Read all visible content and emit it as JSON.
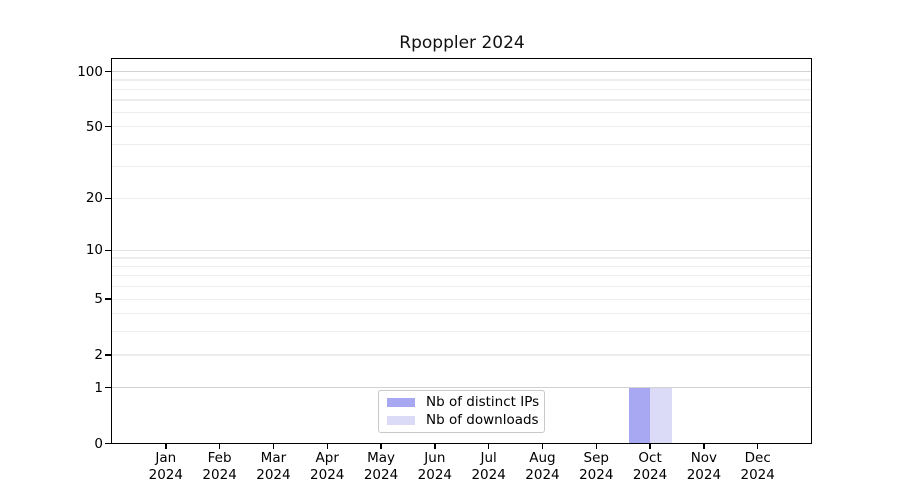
{
  "chart_data": {
    "type": "bar",
    "title": "Rpoppler 2024",
    "year": "2024",
    "categories": [
      "Jan 2024",
      "Feb 2024",
      "Mar 2024",
      "Apr 2024",
      "May 2024",
      "Jun 2024",
      "Jul 2024",
      "Aug 2024",
      "Sep 2024",
      "Oct 2024",
      "Nov 2024",
      "Dec 2024"
    ],
    "series": [
      {
        "name": "Nb of distinct IPs",
        "color": "#a7a7f2",
        "values": [
          0,
          0,
          0,
          0,
          0,
          0,
          0,
          0,
          0,
          1,
          0,
          0
        ]
      },
      {
        "name": "Nb of downloads",
        "color": "#dbdbf7",
        "values": [
          0,
          0,
          0,
          0,
          0,
          0,
          0,
          0,
          0,
          1,
          0,
          0
        ]
      }
    ],
    "y_ticks": [
      0,
      1,
      2,
      5,
      10,
      20,
      50,
      100
    ],
    "y_scale": "log1p",
    "ylim": [
      0,
      117
    ],
    "xlabel": "",
    "ylabel": "",
    "grid": "horizontal-minor-log",
    "grid_values": [
      1,
      2,
      3,
      4,
      5,
      6,
      7,
      8,
      9,
      10,
      20,
      30,
      40,
      50,
      60,
      70,
      80,
      90,
      100
    ],
    "legend_position": "lower center"
  },
  "colors": {
    "grid_minor": "#ededed",
    "grid_mid": "#e3e3e3",
    "grid_major": "#d2d2d2",
    "axis": "#000000",
    "legend_border": "#c9c9c9",
    "background": "#ffffff"
  }
}
